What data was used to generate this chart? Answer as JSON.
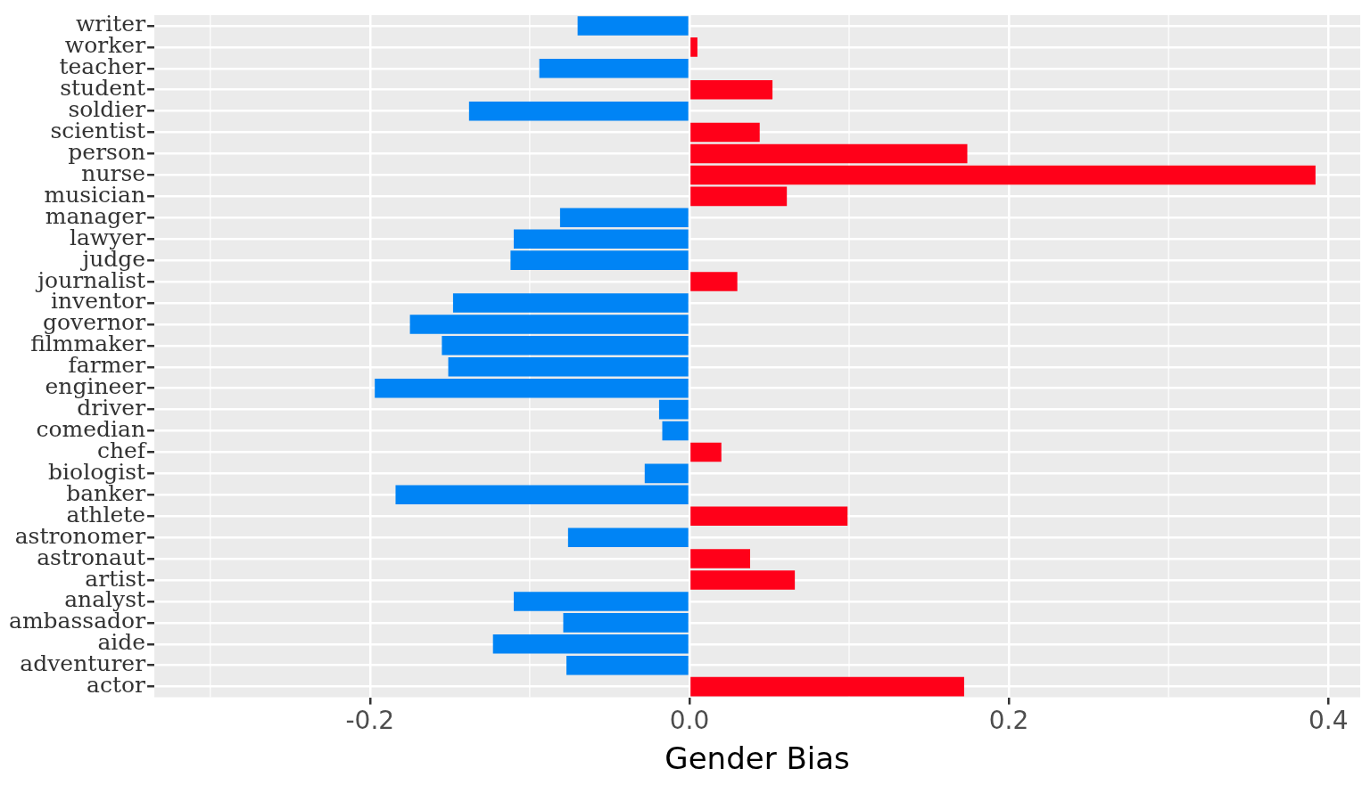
{
  "chart_data": {
    "type": "bar",
    "orientation": "horizontal",
    "xlabel": "Gender Bias",
    "categories": [
      "writer",
      "worker",
      "teacher",
      "student",
      "soldier",
      "scientist",
      "person",
      "nurse",
      "musician",
      "manager",
      "lawyer",
      "judge",
      "journalist",
      "inventor",
      "governor",
      "filmmaker",
      "farmer",
      "engineer",
      "driver",
      "comedian",
      "chef",
      "biologist",
      "banker",
      "athlete",
      "astronomer",
      "astronaut",
      "artist",
      "analyst",
      "ambassador",
      "aide",
      "adventurer",
      "actor"
    ],
    "values": [
      -0.07,
      0.005,
      -0.094,
      0.052,
      -0.138,
      0.044,
      0.174,
      0.392,
      0.061,
      -0.081,
      -0.11,
      -0.112,
      0.03,
      -0.148,
      -0.175,
      -0.155,
      -0.151,
      -0.197,
      -0.019,
      -0.017,
      0.02,
      -0.028,
      -0.184,
      0.099,
      -0.076,
      0.038,
      0.066,
      -0.11,
      -0.079,
      -0.123,
      -0.077,
      0.172
    ],
    "colors": [
      "#0084f5",
      "#ff0019",
      "#0084f5",
      "#ff0019",
      "#0084f5",
      "#ff0019",
      "#ff0019",
      "#ff0019",
      "#ff0019",
      "#0084f5",
      "#0084f5",
      "#0084f5",
      "#ff0019",
      "#0084f5",
      "#0084f5",
      "#0084f5",
      "#0084f5",
      "#0084f5",
      "#0084f5",
      "#0084f5",
      "#ff0019",
      "#0084f5",
      "#0084f5",
      "#ff0019",
      "#0084f5",
      "#ff0019",
      "#ff0019",
      "#0084f5",
      "#0084f5",
      "#0084f5",
      "#0084f5",
      "#ff0019"
    ],
    "xlim": [
      -0.335,
      0.42
    ],
    "xticks": [
      -0.2,
      {
        "value": 0,
        "label": "0.0"
      },
      0.2,
      0.4
    ],
    "grid": true
  }
}
